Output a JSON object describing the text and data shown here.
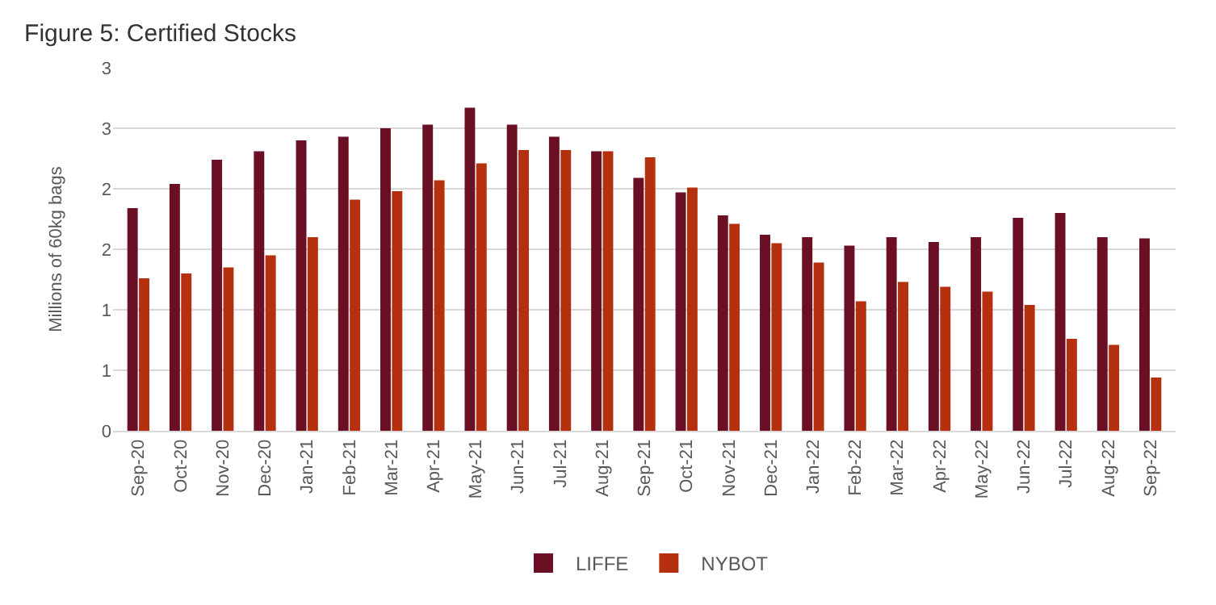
{
  "chart_data": {
    "type": "bar",
    "title": "Figure 5: Certified Stocks",
    "ylabel": "Millions of 60kg bags",
    "categories": [
      "Sep-20",
      "Oct-20",
      "Nov-20",
      "Dec-20",
      "Jan-21",
      "Feb-21",
      "Mar-21",
      "Apr-21",
      "May-21",
      "Jun-21",
      "Jul-21",
      "Aug-21",
      "Sep-21",
      "Oct-21",
      "Nov-21",
      "Dec-21",
      "Jan-22",
      "Feb-22",
      "Mar-22",
      "Apr-22",
      "May-22",
      "Jun-22",
      "Jul-22",
      "Aug-22",
      "Sep-22"
    ],
    "series": [
      {
        "name": "LIFFE",
        "color": "#6b0f24",
        "values": [
          1.84,
          2.04,
          2.24,
          2.31,
          2.4,
          2.43,
          2.5,
          2.53,
          2.67,
          2.53,
          2.43,
          2.31,
          2.09,
          1.97,
          1.78,
          1.62,
          1.6,
          1.53,
          1.6,
          1.56,
          1.6,
          1.76,
          1.8,
          1.6,
          1.59
        ]
      },
      {
        "name": "NYBOT",
        "color": "#b5300f",
        "values": [
          1.26,
          1.3,
          1.35,
          1.45,
          1.6,
          1.91,
          1.98,
          2.07,
          2.21,
          2.32,
          2.32,
          2.31,
          2.26,
          2.01,
          1.71,
          1.55,
          1.39,
          1.07,
          1.23,
          1.19,
          1.15,
          1.04,
          0.76,
          0.71,
          0.44
        ]
      }
    ],
    "ylim": [
      0,
      3
    ],
    "yticks": [
      0,
      {
        "value": 0.5,
        "label": "1"
      },
      1,
      {
        "value": 1.5,
        "label": "2"
      },
      2,
      {
        "value": 2.5,
        "label": "3"
      },
      3
    ],
    "grid": "y",
    "legend": "bottom"
  }
}
